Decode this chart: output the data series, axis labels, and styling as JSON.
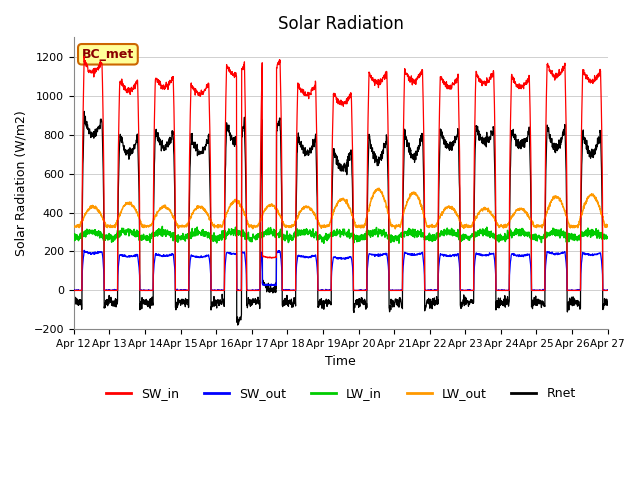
{
  "title": "Solar Radiation",
  "xlabel": "Time",
  "ylabel": "Solar Radiation (W/m2)",
  "ylim": [
    -200,
    1300
  ],
  "yticks": [
    -200,
    0,
    200,
    400,
    600,
    800,
    1000,
    1200
  ],
  "n_days": 15,
  "xtick_labels": [
    "Apr 12",
    "Apr 13",
    "Apr 14",
    "Apr 15",
    "Apr 16",
    "Apr 17",
    "Apr 18",
    "Apr 19",
    "Apr 20",
    "Apr 21",
    "Apr 22",
    "Apr 23",
    "Apr 24",
    "Apr 25",
    "Apr 26",
    "Apr 27"
  ],
  "colors": {
    "SW_in": "#ff0000",
    "SW_out": "#0000ff",
    "LW_in": "#00cc00",
    "LW_out": "#ff9900",
    "Rnet": "#000000"
  },
  "legend_label": "BC_met",
  "legend_box_color": "#ffff99",
  "legend_box_edge": "#cc6600",
  "background_color": "#ffffff",
  "grid_color": "#d0d0d0",
  "title_fontsize": 12,
  "label_fontsize": 9,
  "SW_in_peaks": [
    1180,
    1080,
    1100,
    1060,
    1160,
    1180,
    1060,
    1010,
    1120,
    1130,
    1100,
    1120,
    1100,
    1160,
    1130
  ],
  "LW_out_peaks": [
    430,
    450,
    430,
    430,
    460,
    440,
    430,
    470,
    520,
    500,
    430,
    420,
    420,
    480,
    490
  ],
  "LW_in_base": 280,
  "night_rnet": -100
}
